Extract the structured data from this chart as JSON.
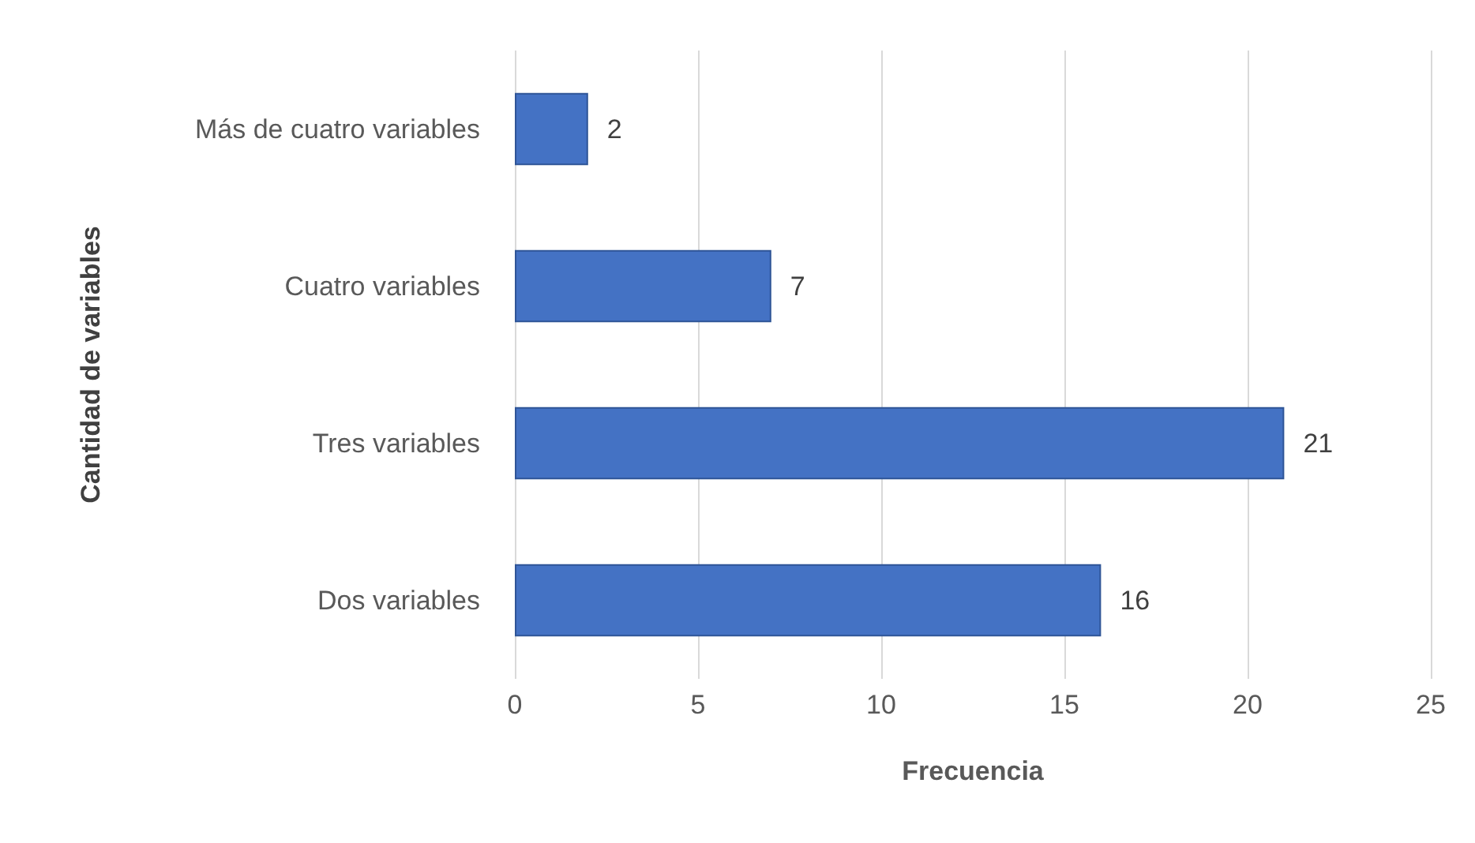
{
  "chart_data": {
    "type": "bar",
    "orientation": "horizontal",
    "xlabel": "Frecuencia",
    "ylabel": "Cantidad de variables",
    "categories": [
      "Más de cuatro variables",
      "Cuatro variables",
      "Tres variables",
      "Dos variables"
    ],
    "values": [
      2,
      7,
      21,
      16
    ],
    "color": "#4472c4",
    "xlim": [
      0,
      25
    ],
    "xticks": [
      0,
      5,
      10,
      15,
      20,
      25
    ],
    "grid": "x",
    "data_labels": true
  }
}
